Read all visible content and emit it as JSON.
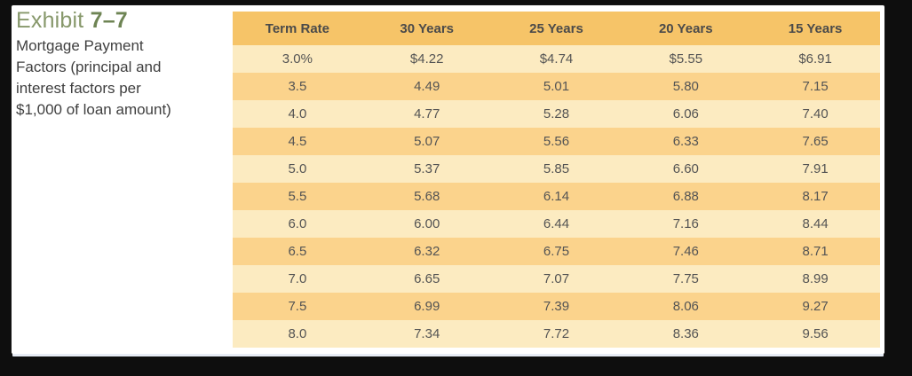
{
  "exhibit": {
    "title_word": "Exhibit",
    "title_number": "7–7",
    "subtitle_lines": [
      "Mortgage Payment",
      "Factors (principal and",
      "interest factors per",
      "$1,000 of loan amount)"
    ]
  },
  "colors": {
    "page_bg": "#0e0e0e",
    "card_bg": "#ffffff",
    "title_green": "#87986B",
    "title_number_green": "#6E8454",
    "header_bg": "#F6C468",
    "row_dark": "#FBD38C",
    "row_light": "#FCEBC1",
    "header_text": "#4A4A4A",
    "cell_text": "#545454"
  },
  "chart_data": {
    "type": "table",
    "title": "Exhibit 7–7 Mortgage Payment Factors (principal and interest factors per $1,000 of loan amount)",
    "columns": [
      "Term Rate",
      "30 Years",
      "25 Years",
      "20 Years",
      "15 Years"
    ],
    "rows": [
      [
        "3.0%",
        "$4.22",
        "$4.74",
        "$5.55",
        "$6.91"
      ],
      [
        "3.5",
        "4.49",
        "5.01",
        "5.80",
        "7.15"
      ],
      [
        "4.0",
        "4.77",
        "5.28",
        "6.06",
        "7.40"
      ],
      [
        "4.5",
        "5.07",
        "5.56",
        "6.33",
        "7.65"
      ],
      [
        "5.0",
        "5.37",
        "5.85",
        "6.60",
        "7.91"
      ],
      [
        "5.5",
        "5.68",
        "6.14",
        "6.88",
        "8.17"
      ],
      [
        "6.0",
        "6.00",
        "6.44",
        "7.16",
        "8.44"
      ],
      [
        "6.5",
        "6.32",
        "6.75",
        "7.46",
        "8.71"
      ],
      [
        "7.0",
        "6.65",
        "7.07",
        "7.75",
        "8.99"
      ],
      [
        "7.5",
        "6.99",
        "7.39",
        "8.06",
        "9.27"
      ],
      [
        "8.0",
        "7.34",
        "7.72",
        "8.36",
        "9.56"
      ]
    ]
  }
}
